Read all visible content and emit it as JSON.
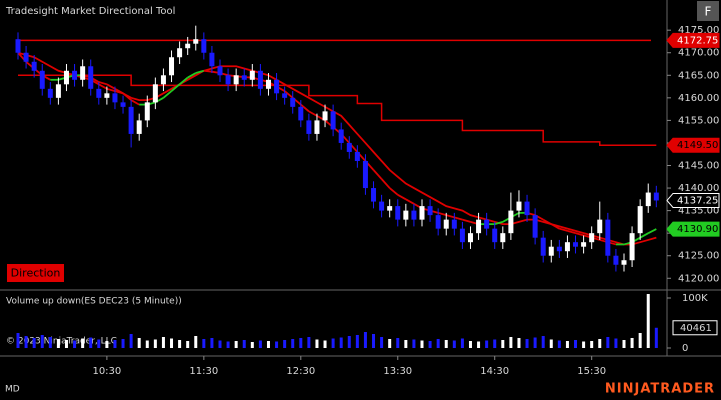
{
  "chart_data": {
    "type": "candlestick",
    "title": "Tradesight Market Directional Tool",
    "x": [
      "09:35",
      "09:40",
      "09:45",
      "09:50",
      "09:55",
      "10:00",
      "10:05",
      "10:10",
      "10:15",
      "10:20",
      "10:25",
      "10:30",
      "10:35",
      "10:40",
      "10:45",
      "10:50",
      "10:55",
      "11:00",
      "11:05",
      "11:10",
      "11:15",
      "11:20",
      "11:25",
      "11:30",
      "11:35",
      "11:40",
      "11:45",
      "11:50",
      "11:55",
      "12:00",
      "12:05",
      "12:10",
      "12:15",
      "12:20",
      "12:25",
      "12:30",
      "12:35",
      "12:40",
      "12:45",
      "12:50",
      "12:55",
      "13:00",
      "13:05",
      "13:10",
      "13:15",
      "13:20",
      "13:25",
      "13:30",
      "13:35",
      "13:40",
      "13:45",
      "13:50",
      "13:55",
      "14:00",
      "14:05",
      "14:10",
      "14:15",
      "14:20",
      "14:25",
      "14:30",
      "14:35",
      "14:40",
      "14:45",
      "14:50",
      "14:55",
      "15:00",
      "15:05",
      "15:10",
      "15:15",
      "15:20",
      "15:25",
      "15:30",
      "15:35",
      "15:40",
      "15:45",
      "15:50",
      "15:55",
      "16:00",
      "16:05",
      "16:10"
    ],
    "open": [
      4173,
      4170,
      4168,
      4166,
      4162,
      4160,
      4163,
      4166,
      4164,
      4167,
      4162,
      4160,
      4161,
      4159,
      4158,
      4152,
      4155,
      4159,
      4163,
      4165,
      4169,
      4171,
      4172,
      4173,
      4170,
      4167,
      4165,
      4163,
      4165,
      4164,
      4166,
      4162,
      4164,
      4161,
      4160,
      4158,
      4155,
      4152,
      4155,
      4157,
      4153,
      4150,
      4148,
      4146,
      4140,
      4137,
      4135,
      4136,
      4133,
      4135,
      4133,
      4136,
      4134,
      4131,
      4133,
      4131,
      4128,
      4130,
      4133,
      4131,
      4128,
      4130,
      4135,
      4137,
      4134,
      4129,
      4125,
      4127,
      4126,
      4128,
      4127,
      4128,
      4130,
      4133,
      4125,
      4123,
      4124,
      4130,
      4136,
      4139
    ],
    "high": [
      4174.5,
      4171.5,
      4169.5,
      4167.5,
      4163.5,
      4164.5,
      4167.5,
      4167.5,
      4168.5,
      4168.5,
      4163.5,
      4162.5,
      4162.5,
      4160.5,
      4159.5,
      4156.5,
      4160.5,
      4164.5,
      4166.5,
      4170.5,
      4172.5,
      4173.5,
      4176,
      4174.5,
      4171.5,
      4168.5,
      4166.5,
      4166.5,
      4166.5,
      4167.5,
      4167.5,
      4165.5,
      4165.5,
      4162.5,
      4161.5,
      4159.5,
      4156.5,
      4156.5,
      4158.5,
      4158.5,
      4154.5,
      4151.5,
      4149.5,
      4147.5,
      4141.5,
      4138.5,
      4137.5,
      4137.5,
      4136.5,
      4136.5,
      4137.5,
      4137.5,
      4135.5,
      4134.5,
      4134.5,
      4132.5,
      4131.5,
      4134.5,
      4134.5,
      4132.5,
      4131.5,
      4139,
      4139.5,
      4138.5,
      4135.5,
      4130.5,
      4128.5,
      4128.5,
      4129.5,
      4129.5,
      4129.5,
      4131.5,
      4137,
      4134.5,
      4126.5,
      4125.5,
      4131.5,
      4137.5,
      4141,
      4140.5
    ],
    "low": [
      4168.5,
      4166.5,
      4164.5,
      4160.5,
      4158.5,
      4158.5,
      4161.5,
      4162.5,
      4162.5,
      4160.5,
      4158.5,
      4158.5,
      4157.5,
      4156.5,
      4149,
      4150.5,
      4153.5,
      4157.5,
      4161.5,
      4163.5,
      4167.5,
      4169.5,
      4170.5,
      4168.5,
      4165.5,
      4163.5,
      4161.5,
      4161.5,
      4162.5,
      4162.5,
      4160.5,
      4160.5,
      4159.5,
      4158.5,
      4156.5,
      4153.5,
      4150.5,
      4150.5,
      4153.5,
      4151.5,
      4148.5,
      4146.5,
      4144.5,
      4138.5,
      4135.5,
      4133.5,
      4133.5,
      4131.5,
      4131.5,
      4131.5,
      4131.5,
      4132.5,
      4129.5,
      4129.5,
      4129.5,
      4126.5,
      4126.5,
      4128.5,
      4129.5,
      4126.5,
      4126.5,
      4128.5,
      4133.5,
      4132.5,
      4127.5,
      4123.5,
      4123.5,
      4124.5,
      4124.5,
      4125.5,
      4125.5,
      4126.5,
      4128.5,
      4123.5,
      4121.5,
      4121.5,
      4122.5,
      4128.5,
      4134.5,
      4135.75
    ],
    "close": [
      4170,
      4168,
      4166,
      4162,
      4160,
      4163,
      4166,
      4164,
      4167,
      4162,
      4160,
      4161,
      4159,
      4158,
      4152,
      4155,
      4159,
      4163,
      4165,
      4169,
      4171,
      4172,
      4173,
      4170,
      4167,
      4165,
      4163,
      4165,
      4164,
      4166,
      4162,
      4164,
      4161,
      4160,
      4158,
      4155,
      4152,
      4155,
      4157,
      4153,
      4150,
      4148,
      4146,
      4140,
      4137,
      4135,
      4136,
      4133,
      4135,
      4133,
      4136,
      4134,
      4131,
      4133,
      4131,
      4128,
      4130,
      4133,
      4131,
      4128,
      4130,
      4135,
      4137,
      4134,
      4129,
      4125,
      4127,
      4126,
      4128,
      4127,
      4128,
      4130,
      4133,
      4125,
      4123,
      4124,
      4130,
      4136,
      4139,
      4137.25
    ],
    "up_color": "#ffffff",
    "down_color": "#1a1aff",
    "ylim": [
      4117.4,
      4177.7
    ],
    "yticks": [
      {
        "value": 4120,
        "label": "4120.00"
      },
      {
        "value": 4125,
        "label": "4125.00"
      },
      {
        "value": 4130,
        "label": "4130.00"
      },
      {
        "value": 4135,
        "label": "4135.00"
      },
      {
        "value": 4140,
        "label": "4140.00"
      },
      {
        "value": 4145,
        "label": "4145.00"
      },
      {
        "value": 4150,
        "label": "4150.00"
      },
      {
        "value": 4155,
        "label": "4155.00"
      },
      {
        "value": 4160,
        "label": "4160.00"
      },
      {
        "value": 4165,
        "label": "4165.00"
      },
      {
        "value": 4170,
        "label": "4170.00"
      },
      {
        "value": 4175,
        "label": "4175.00"
      }
    ],
    "xticks": [
      "10:30",
      "11:30",
      "12:30",
      "13:30",
      "14:30",
      "15:30"
    ],
    "upper_level": {
      "value": 4172.75,
      "color": "#e00000"
    },
    "lower_step": {
      "color": "#e00000",
      "last_label": "4149.50",
      "values": [
        4165,
        4165,
        4165,
        4165,
        4165,
        4165,
        4165,
        4165,
        4165,
        4165,
        4165,
        4165,
        4165,
        4165,
        4162.75,
        4162.75,
        4162.75,
        4162.75,
        4162.75,
        4162.75,
        4162.75,
        4162.75,
        4162.75,
        4162.75,
        4162.75,
        4162.75,
        4162.75,
        4162.75,
        4162.75,
        4162.75,
        4162.75,
        4162.75,
        4162.75,
        4162.75,
        4162.75,
        4162.75,
        4160.5,
        4160.5,
        4160.5,
        4160.5,
        4160.5,
        4160.5,
        4158.75,
        4158.75,
        4158.75,
        4155,
        4155,
        4155,
        4155,
        4155,
        4155,
        4155,
        4155,
        4155,
        4155,
        4152.75,
        4152.75,
        4152.75,
        4152.75,
        4152.75,
        4152.75,
        4152.75,
        4152.75,
        4152.75,
        4152.75,
        4150.25,
        4150.25,
        4150.25,
        4150.25,
        4150.25,
        4150.25,
        4150.25,
        4149.5,
        4149.5,
        4149.5,
        4149.5,
        4149.5,
        4149.5,
        4149.5,
        4149.5
      ]
    },
    "slow_line": {
      "color": "#e00000",
      "values": [
        4170,
        4169.5,
        4169,
        4168,
        4167,
        4166,
        4165.5,
        4165,
        4164.5,
        4164,
        4163,
        4162,
        4161.5,
        4161,
        4160,
        4159.5,
        4159.5,
        4160,
        4161,
        4162,
        4163,
        4164,
        4165,
        4166,
        4166.5,
        4167,
        4167,
        4167,
        4166.5,
        4166,
        4165.5,
        4165,
        4164,
        4163,
        4162,
        4161,
        4160,
        4159,
        4158,
        4157,
        4156,
        4154,
        4152,
        4150,
        4148,
        4146,
        4144,
        4142.5,
        4141,
        4140,
        4139,
        4138,
        4137,
        4136,
        4135.5,
        4135,
        4134,
        4133.5,
        4133,
        4132.5,
        4132,
        4132,
        4132.5,
        4133,
        4133,
        4132.5,
        4132,
        4131.5,
        4131,
        4130.5,
        4130,
        4129.5,
        4129,
        4128.5,
        4128,
        4127.5,
        4127.5,
        4128,
        4128.5,
        4129
      ]
    },
    "fast_line": {
      "rising_color": "#22cc22",
      "falling_color": "#e00000",
      "last_label": "4130.90",
      "values": [
        4170,
        4168,
        4166.5,
        4165,
        4164,
        4164,
        4164.5,
        4165,
        4165,
        4164.5,
        4163.5,
        4163,
        4162,
        4161,
        4159.5,
        4158.5,
        4158.5,
        4159,
        4160,
        4161.5,
        4163,
        4164.5,
        4165.5,
        4166,
        4165.8,
        4165.5,
        4165,
        4164.8,
        4164.6,
        4164.5,
        4164,
        4163.5,
        4162.5,
        4161.5,
        4160,
        4158.5,
        4157,
        4156,
        4155,
        4153.5,
        4152,
        4150,
        4148,
        4146,
        4144,
        4142,
        4140,
        4138.5,
        4137.5,
        4136.5,
        4135.5,
        4135,
        4134.5,
        4134,
        4133.5,
        4133,
        4132.5,
        4132,
        4132,
        4132,
        4132.5,
        4133.5,
        4134.5,
        4134.5,
        4134,
        4133,
        4132,
        4131,
        4130.5,
        4130,
        4129.5,
        4129,
        4128.5,
        4128,
        4127.5,
        4127.5,
        4128,
        4129,
        4130,
        4130.9
      ]
    },
    "volume": {
      "title": "Volume up down(ES DEC23 (5 Minute))",
      "ylim": [
        0,
        112000
      ],
      "yticks": [
        0,
        {
          "value": 100000,
          "label": "100K"
        }
      ],
      "values": [
        30000,
        24000,
        20000,
        26000,
        22000,
        18000,
        16000,
        15000,
        19000,
        21000,
        17000,
        14000,
        16000,
        18000,
        28000,
        20000,
        15000,
        17000,
        22000,
        19000,
        16000,
        14000,
        24000,
        18000,
        20000,
        15000,
        13000,
        14000,
        16000,
        12000,
        15000,
        14000,
        13000,
        16000,
        18000,
        20000,
        22000,
        17000,
        15000,
        19000,
        21000,
        24000,
        26000,
        32000,
        28000,
        22000,
        18000,
        20000,
        16000,
        17000,
        15000,
        14000,
        18000,
        16000,
        15000,
        19000,
        14000,
        13000,
        15000,
        17000,
        16000,
        22000,
        20000,
        18000,
        21000,
        24000,
        17000,
        15000,
        14000,
        16000,
        13000,
        14000,
        18000,
        22000,
        19000,
        16000,
        20000,
        30000,
        108000,
        40461
      ]
    }
  },
  "ui": {
    "f_button": "F",
    "direction": "Direction",
    "copyright": "© 2023 NinjaTrader, LLC",
    "status": "MD",
    "brand": "NINJATRADER"
  }
}
